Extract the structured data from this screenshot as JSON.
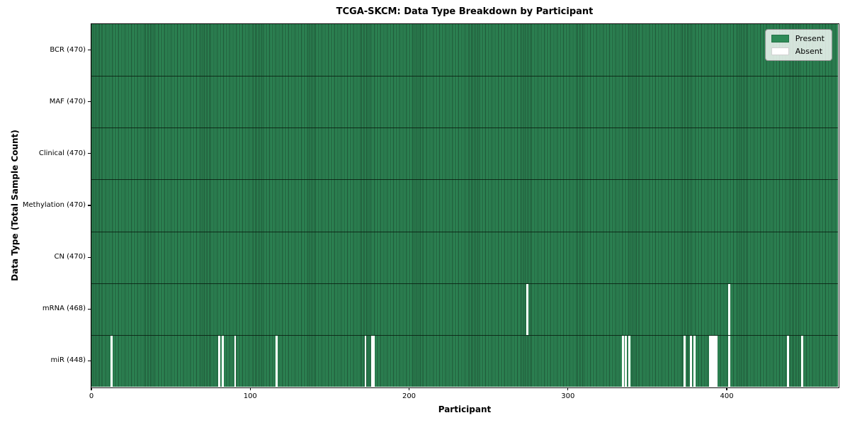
{
  "chart_data": {
    "type": "heatmap",
    "title": "TCGA-SKCM: Data Type Breakdown by Participant",
    "xlabel": "Participant",
    "ylabel": "Data Type (Total Sample Count)",
    "n_participants": 470,
    "x_range": [
      0,
      470
    ],
    "xticks": [
      0,
      100,
      200,
      300,
      400
    ],
    "grid": false,
    "legend": {
      "position": "upper-right",
      "present_label": "Present",
      "absent_label": "Absent"
    },
    "colors": {
      "present": "#2e8b57",
      "present_stripe_dark": "#1d5134",
      "absent": "#ffffff"
    },
    "rows": [
      {
        "data_type": "BCR",
        "label": "BCR (470)",
        "present_count": 470,
        "absent_participants": []
      },
      {
        "data_type": "MAF",
        "label": "MAF (470)",
        "present_count": 470,
        "absent_participants": []
      },
      {
        "data_type": "Clinical",
        "label": "Clinical (470)",
        "present_count": 470,
        "absent_participants": []
      },
      {
        "data_type": "Methylation",
        "label": "Methylation (470)",
        "present_count": 470,
        "absent_participants": []
      },
      {
        "data_type": "CN",
        "label": "CN (470)",
        "present_count": 470,
        "absent_participants": []
      },
      {
        "data_type": "mRNA",
        "label": "mRNA (468)",
        "present_count": 468,
        "absent_participants": [
          274,
          401
        ]
      },
      {
        "data_type": "miR",
        "label": "miR (448)",
        "present_count": 448,
        "absent_participants": [
          12,
          80,
          82,
          90,
          116,
          172,
          176,
          177,
          334,
          336,
          338,
          373,
          377,
          379,
          389,
          390,
          391,
          392,
          393,
          401,
          438,
          447
        ]
      }
    ]
  }
}
